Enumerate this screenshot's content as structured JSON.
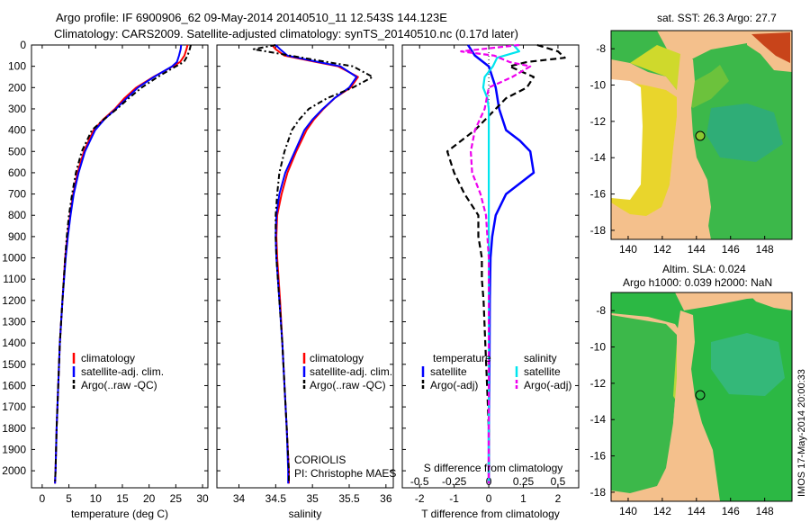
{
  "header": {
    "title_line1": "Argo profile: IF 6900906_62 09-May-2014 20140510_11 12.543S 144.123E",
    "title_line2": "Climatology: CARS2009. Satellite-adjusted climatology: synTS_20140510.nc (0.17d later)"
  },
  "depth_ticks": [
    "0",
    "100",
    "200",
    "300",
    "400",
    "500",
    "600",
    "700",
    "800",
    "900",
    "1000",
    "1100",
    "1200",
    "1300",
    "1400",
    "1500",
    "1600",
    "1700",
    "1800",
    "1900",
    "2000"
  ],
  "colors": {
    "clim": "#ff0000",
    "sat": "#0000ff",
    "argo": "#000000",
    "sat_s": "#00e5ee",
    "argo_s": "#ee00ee",
    "land": "#f4c08c"
  },
  "chart_data": [
    {
      "type": "line",
      "xlabel": "temperature (deg C)",
      "xlim": [
        -2,
        31
      ],
      "ylim": [
        0,
        2080
      ],
      "xticks": [
        0,
        5,
        10,
        15,
        20,
        25,
        30
      ],
      "xtick_labels": [
        "0",
        "5",
        "10",
        "15",
        "20",
        "25",
        "30"
      ],
      "legend": [
        "climatology",
        "satellite-adj. clim.",
        "Argo(..raw -QC)"
      ],
      "series": [
        {
          "name": "climatology",
          "depth": [
            0,
            20,
            50,
            80,
            100,
            150,
            200,
            250,
            300,
            350,
            400,
            500,
            600,
            700,
            800,
            900,
            1000,
            1200,
            1400,
            1600,
            1800,
            2000,
            2060
          ],
          "values": [
            27.2,
            27.0,
            26.6,
            25.8,
            24.4,
            20.8,
            17.6,
            15.4,
            13.6,
            11.4,
            9.6,
            7.8,
            6.6,
            5.8,
            5.2,
            4.7,
            4.3,
            3.8,
            3.3,
            3.0,
            2.7,
            2.5,
            2.4
          ]
        },
        {
          "name": "satellite-adj. clim.",
          "depth": [
            0,
            20,
            50,
            80,
            100,
            150,
            200,
            250,
            300,
            350,
            400,
            500,
            600,
            700,
            800,
            900,
            1000,
            1200,
            1400,
            1600,
            1800,
            2000,
            2060
          ],
          "values": [
            26.0,
            25.9,
            25.6,
            25.2,
            24.3,
            20.9,
            17.9,
            15.8,
            13.8,
            11.6,
            9.9,
            8.0,
            6.8,
            5.9,
            5.3,
            4.8,
            4.4,
            3.8,
            3.3,
            3.0,
            2.7,
            2.5,
            2.4
          ]
        },
        {
          "name": "Argo(..raw -QC)",
          "depth": [
            0,
            20,
            50,
            80,
            100,
            150,
            200,
            250,
            300,
            350,
            400,
            500,
            600,
            700,
            800,
            900,
            1000,
            1200,
            1400,
            1600,
            1800,
            2000,
            2060
          ],
          "values": [
            27.8,
            27.6,
            27.2,
            26.5,
            25.0,
            21.6,
            18.6,
            16.2,
            14.0,
            11.5,
            9.3,
            7.4,
            6.3,
            5.6,
            5.0,
            4.6,
            4.3,
            3.8,
            3.3,
            3.0,
            2.7,
            2.5,
            2.4
          ]
        }
      ]
    },
    {
      "type": "line",
      "xlabel": "salinity",
      "xlim": [
        33.7,
        36.1
      ],
      "ylim": [
        0,
        2080
      ],
      "xticks": [
        34,
        34.5,
        35,
        35.5,
        36
      ],
      "xtick_labels": [
        "34",
        "34.5",
        "35",
        "35.5",
        "36"
      ],
      "legend": [
        "climatology",
        "satellite-adj. clim.",
        "Argo(..raw -QC)"
      ],
      "series": [
        {
          "name": "climatology",
          "depth": [
            0,
            20,
            50,
            80,
            100,
            150,
            200,
            250,
            300,
            350,
            400,
            500,
            600,
            700,
            800,
            900,
            1000,
            1200,
            1400,
            1600,
            1800,
            2000,
            2060
          ],
          "values": [
            34.45,
            34.5,
            34.62,
            35.05,
            35.35,
            35.62,
            35.52,
            35.3,
            35.15,
            35.02,
            34.92,
            34.78,
            34.66,
            34.58,
            34.52,
            34.51,
            34.52,
            34.56,
            34.59,
            34.62,
            34.65,
            34.68,
            34.68
          ]
        },
        {
          "name": "satellite-adj. clim.",
          "depth": [
            0,
            20,
            50,
            80,
            100,
            150,
            200,
            250,
            300,
            350,
            400,
            500,
            600,
            700,
            800,
            900,
            1000,
            1200,
            1400,
            1600,
            1800,
            2000,
            2060
          ],
          "values": [
            34.5,
            34.56,
            34.66,
            35.08,
            35.38,
            35.6,
            35.5,
            35.3,
            35.14,
            35.0,
            34.89,
            34.76,
            34.63,
            34.55,
            34.51,
            34.5,
            34.51,
            34.55,
            34.59,
            34.62,
            34.65,
            34.67,
            34.67
          ]
        },
        {
          "name": "Argo(..raw -QC)",
          "depth": [
            0,
            20,
            50,
            80,
            100,
            150,
            200,
            250,
            300,
            350,
            400,
            500,
            600,
            700,
            800,
            900,
            1000,
            1200,
            1400,
            1600,
            1800,
            2000,
            2060
          ],
          "values": [
            34.5,
            34.2,
            34.7,
            35.2,
            35.55,
            35.82,
            35.55,
            35.2,
            34.95,
            34.82,
            34.72,
            34.62,
            34.55,
            34.52,
            34.5,
            34.5,
            34.51,
            34.55,
            34.59,
            34.62,
            34.65,
            34.68,
            34.68
          ]
        }
      ]
    },
    {
      "type": "line",
      "xlabel": "T difference from climatology",
      "xlabel_top": "S difference from climatology",
      "xlim": [
        -2.5,
        2.6
      ],
      "ylim": [
        0,
        2080
      ],
      "xticks": [
        -2,
        -1,
        0,
        1,
        2
      ],
      "xtick_labels": [
        "-2",
        "-1",
        "0",
        "1",
        "2"
      ],
      "xticks_top": [
        -0.5,
        -0.25,
        0,
        0.25,
        0.5
      ],
      "xtick_labels_top": [
        "-0.5",
        "-0.25",
        "0",
        "0.25",
        "0.5"
      ],
      "legend_groups": [
        {
          "heading": "temperature",
          "items": [
            "satellite",
            "Argo(-adj)"
          ]
        },
        {
          "heading": "salinity",
          "items": [
            "satellite",
            "Argo(-adj)"
          ]
        }
      ],
      "series": [
        {
          "name": "temperature satellite",
          "depth": [
            0,
            50,
            100,
            200,
            300,
            400,
            450,
            500,
            600,
            700,
            800,
            900,
            1000,
            1200,
            1500,
            1800,
            2000,
            2060
          ],
          "values": [
            -0.6,
            -0.4,
            0.0,
            0.2,
            0.3,
            0.5,
            0.9,
            1.2,
            1.3,
            0.5,
            0.2,
            0.1,
            0.05,
            0.03,
            0.02,
            0.0,
            0.0,
            0.0
          ]
        },
        {
          "name": "temperature Argo(-adj)",
          "depth": [
            0,
            30,
            60,
            80,
            100,
            150,
            200,
            250,
            300,
            400,
            500,
            600,
            700,
            800,
            900,
            1000,
            1100,
            1200,
            1400,
            1600,
            1800,
            2000,
            2060
          ],
          "values": [
            1.4,
            2.0,
            2.2,
            1.1,
            0.6,
            1.3,
            1.1,
            0.5,
            0.2,
            -0.4,
            -1.2,
            -1.0,
            -0.7,
            -0.3,
            -0.3,
            -0.2,
            -0.2,
            -0.15,
            -0.1,
            -0.05,
            0.0,
            0.0,
            0.0
          ]
        },
        {
          "name": "salinity satellite",
          "depth": [
            0,
            30,
            60,
            100,
            150,
            200,
            250,
            300,
            400,
            500,
            700,
            1000,
            1500,
            2000,
            2060
          ],
          "values": [
            0.18,
            0.22,
            0.06,
            0.03,
            -0.03,
            -0.04,
            -0.01,
            0.0,
            0.0,
            0.0,
            0.0,
            0.0,
            0.0,
            0.0,
            0.0
          ]
        },
        {
          "name": "salinity Argo(-adj)",
          "depth": [
            0,
            30,
            50,
            80,
            100,
            150,
            200,
            300,
            400,
            500,
            600,
            700,
            800,
            900,
            1000,
            1200,
            1500,
            2000,
            2060
          ],
          "values": [
            0.22,
            -0.2,
            0.04,
            0.15,
            0.3,
            0.17,
            0.0,
            -0.03,
            -0.1,
            -0.13,
            -0.12,
            -0.06,
            -0.02,
            -0.01,
            0.0,
            0.0,
            0.0,
            0.0,
            0.0
          ]
        }
      ]
    }
  ],
  "maps": {
    "sst": {
      "title": "sat. SST: 26.3  Argo: 27.7",
      "xticks": [
        "140",
        "142",
        "144",
        "146",
        "148"
      ],
      "yticks": [
        "-8",
        "-10",
        "-12",
        "-14",
        "-16",
        "-18"
      ]
    },
    "sla": {
      "title_line1": "Altim. SLA: 0.024",
      "title_line2": "Argo h1000: 0.039  h2000: NaN",
      "xticks": [
        "140",
        "142",
        "144",
        "146",
        "148"
      ],
      "yticks": [
        "-8",
        "-10",
        "-12",
        "-14",
        "-16",
        "-18"
      ]
    }
  },
  "footer": {
    "coriolis": "CORIOLIS",
    "pi": "PI: Christophe MAES",
    "stamp": "IMOS 17-May-2014 20:00:33"
  }
}
